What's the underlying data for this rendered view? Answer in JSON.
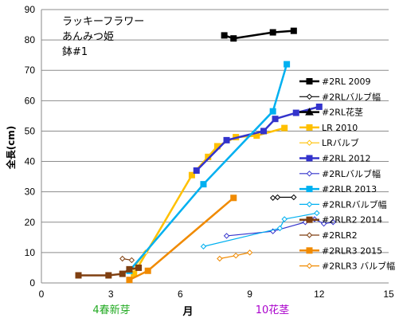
{
  "chart_data": {
    "type": "line",
    "title_lines": [
      "ラッキーフラワー",
      "あんみつ姫",
      "鉢#1"
    ],
    "xlabel": "月",
    "ylabel": "全長(cm)",
    "xlim": [
      0,
      15
    ],
    "ylim": [
      0,
      90
    ],
    "xticks": [
      0,
      3,
      6,
      9,
      12,
      15
    ],
    "yticks": [
      0,
      10,
      20,
      30,
      40,
      50,
      60,
      70,
      80,
      90
    ],
    "grid": "horizontal",
    "legend_position": "right",
    "annotations": [
      {
        "text": "4春新芽",
        "color": "#22aa22",
        "x": 4
      },
      {
        "text": "10花茎",
        "color": "#aa00cc",
        "x": 10
      }
    ],
    "series": [
      {
        "name": "#2RL 2009",
        "color": "#000000",
        "marker": "square",
        "filled": true,
        "x": [
          7.9,
          8.3,
          10.0,
          10.9
        ],
        "y": [
          81.5,
          80.5,
          82.5,
          83.0
        ]
      },
      {
        "name": "#2RLバルブ幅",
        "color": "#000000",
        "marker": "diamond",
        "filled": false,
        "x": [
          10.0,
          10.2,
          10.9
        ],
        "y": [
          28.0,
          28.2,
          28.2
        ]
      },
      {
        "name": "#2RL花茎",
        "color": "#000000",
        "marker": "triangle",
        "filled": true,
        "x": [],
        "y": []
      },
      {
        "name": "LR 2010",
        "color": "#ffc000",
        "marker": "square",
        "filled": true,
        "x": [
          4.0,
          6.5,
          7.2,
          7.6,
          8.4,
          9.3,
          10.5
        ],
        "y": [
          3.0,
          35.5,
          41.5,
          45.0,
          48.0,
          48.5,
          51.0
        ]
      },
      {
        "name": "LRバルブ",
        "color": "#ffc000",
        "marker": "diamond",
        "filled": false,
        "x": [
          4.0,
          4.5
        ],
        "y": [
          5.0,
          10.0
        ]
      },
      {
        "name": "#2RL 2012",
        "color": "#3333cc",
        "marker": "square",
        "filled": true,
        "x": [
          6.7,
          8.0,
          9.6,
          10.1,
          11.0,
          12.0
        ],
        "y": [
          37.0,
          47.0,
          50.0,
          54.0,
          56.0,
          58.0
        ]
      },
      {
        "name": "#2RLバルブ幅",
        "color": "#3333cc",
        "marker": "diamond",
        "filled": false,
        "x": [
          8.0,
          10.0,
          11.4,
          11.8,
          12.2,
          12.6
        ],
        "y": [
          15.5,
          17.0,
          20.0,
          21.0,
          19.5,
          20.0
        ]
      },
      {
        "name": "#2RLR 2013",
        "color": "#00b0f0",
        "marker": "square",
        "filled": true,
        "x": [
          3.8,
          7.0,
          10.0,
          10.6
        ],
        "y": [
          4.0,
          32.5,
          56.5,
          72.0
        ]
      },
      {
        "name": "#2RLRバルブ幅",
        "color": "#00b0f0",
        "marker": "diamond",
        "filled": false,
        "x": [
          7.0,
          10.3,
          10.5,
          11.9
        ],
        "y": [
          12.0,
          18.0,
          21.0,
          23.0
        ]
      },
      {
        "name": "#2RLR2 2014",
        "color": "#7f3f10",
        "marker": "square",
        "filled": true,
        "x": [
          1.6,
          2.9,
          3.5,
          3.8,
          4.2
        ],
        "y": [
          2.5,
          2.5,
          3.0,
          4.5,
          5.0
        ]
      },
      {
        "name": "#2RLR2",
        "color": "#7f3f10",
        "marker": "diamond",
        "filled": false,
        "x": [
          3.5,
          3.9
        ],
        "y": [
          8.0,
          7.5
        ]
      },
      {
        "name": "#2RLR3 2015",
        "color": "#f08a00",
        "marker": "square",
        "filled": true,
        "x": [
          3.8,
          4.6,
          8.3
        ],
        "y": [
          1.0,
          4.0,
          28.0
        ]
      },
      {
        "name": "#2RLR3 バルブ幅",
        "color": "#f08a00",
        "marker": "diamond",
        "filled": false,
        "x": [
          7.7,
          8.4,
          9.0
        ],
        "y": [
          8.0,
          9.0,
          10.0
        ]
      }
    ]
  }
}
